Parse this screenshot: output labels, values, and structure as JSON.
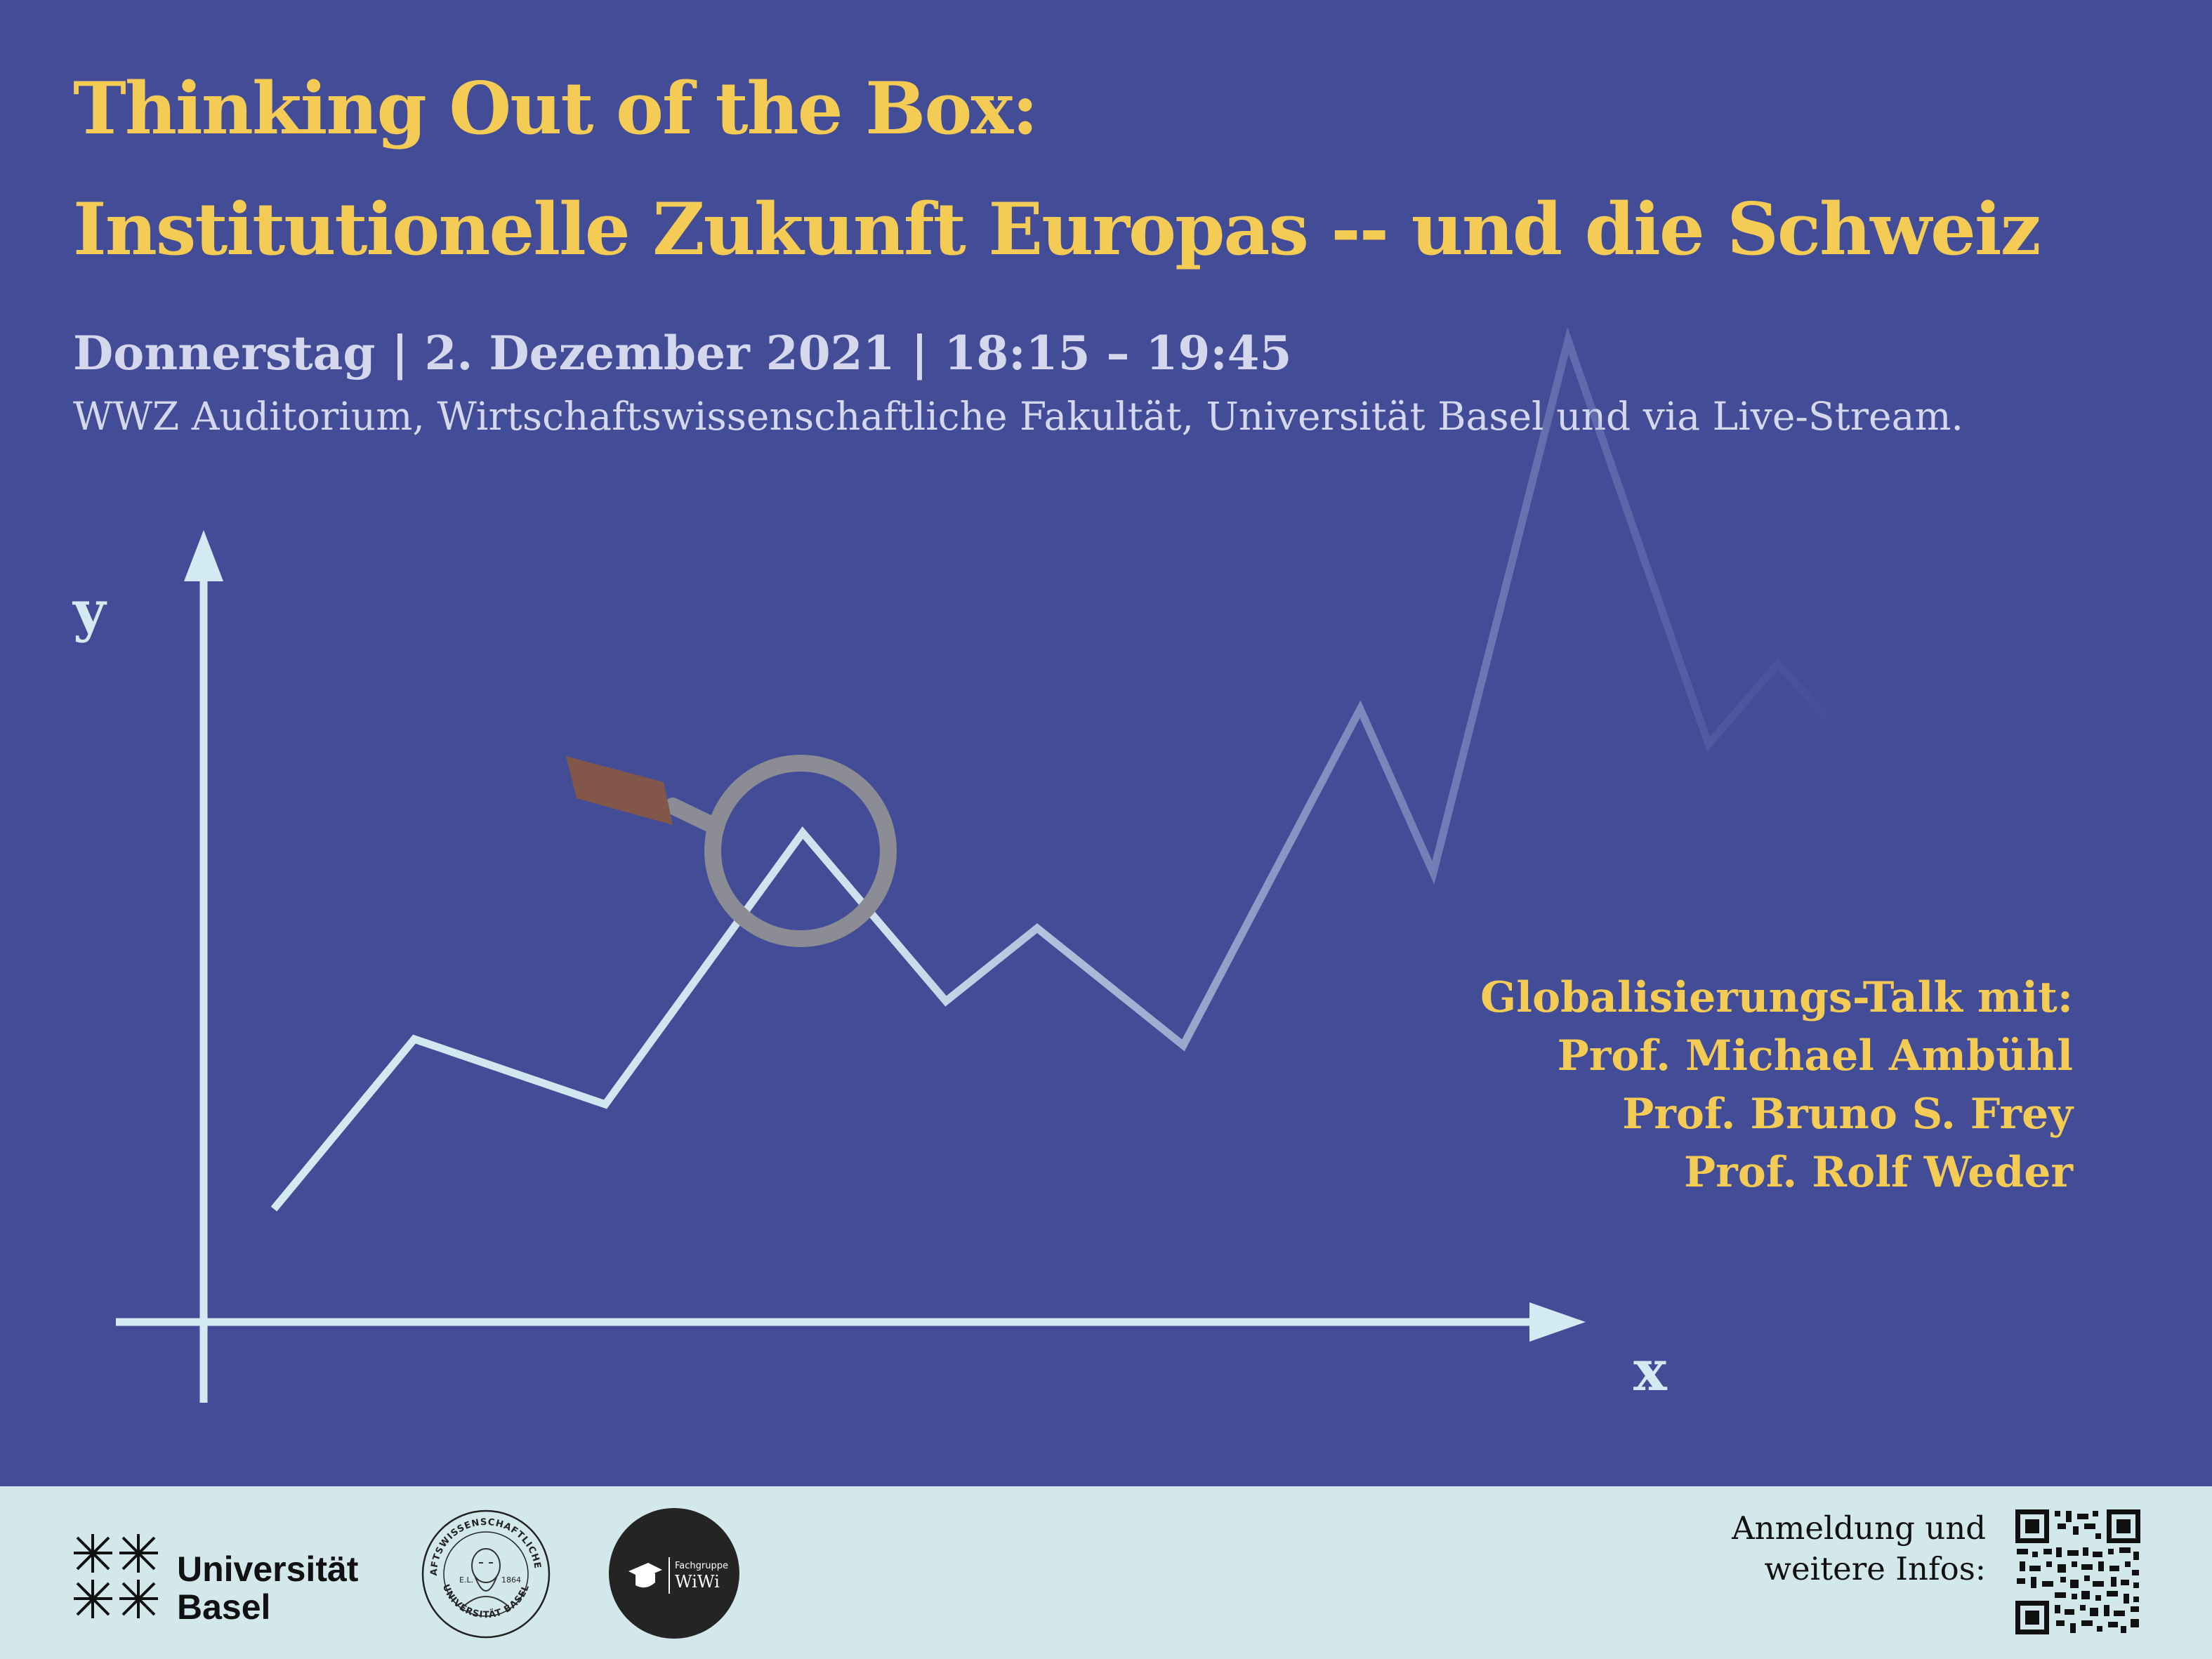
{
  "header": {
    "title_line1": "Thinking Out of the Box:",
    "title_line2": "Institutionelle Zukunft Europas -- und die Schweiz",
    "dateline": "Donnerstag | 2. Dezember 2021 | 18:15 – 19:45",
    "venue": "WWZ Auditorium, Wirtschaftswissenschaftliche Fakultät, Universität Basel und via Live-Stream."
  },
  "graphic": {
    "y_label": "y",
    "x_label": "x",
    "icon": "magnifying-glass-icon"
  },
  "talk": {
    "heading": "Globalisierungs-Talk mit:",
    "speakers": [
      "Prof. Michael Ambühl",
      "Prof. Bruno S. Frey",
      "Prof. Rolf Weder"
    ]
  },
  "footer": {
    "university_name_line1": "Universität",
    "university_name_line2": "Basel",
    "seal_text_top": "WIRTSCHAFTSWISSENSCHAFTLICHE FAKULTÄT",
    "seal_text_bottom": "UNIVERSITÄT BASEL",
    "seal_initials": "E.L.",
    "seal_year": "1864",
    "fachgruppe_label": "Fachgruppe",
    "fachgruppe_name": "WiWi",
    "registration_line1": "Anmeldung und",
    "registration_line2": "weitere Infos:"
  },
  "colors": {
    "background": "#434c96",
    "title": "#f4cb54",
    "text": "#d5d8ec",
    "graph_line": "#d4eaf2",
    "footer": "#d3e8eb"
  }
}
